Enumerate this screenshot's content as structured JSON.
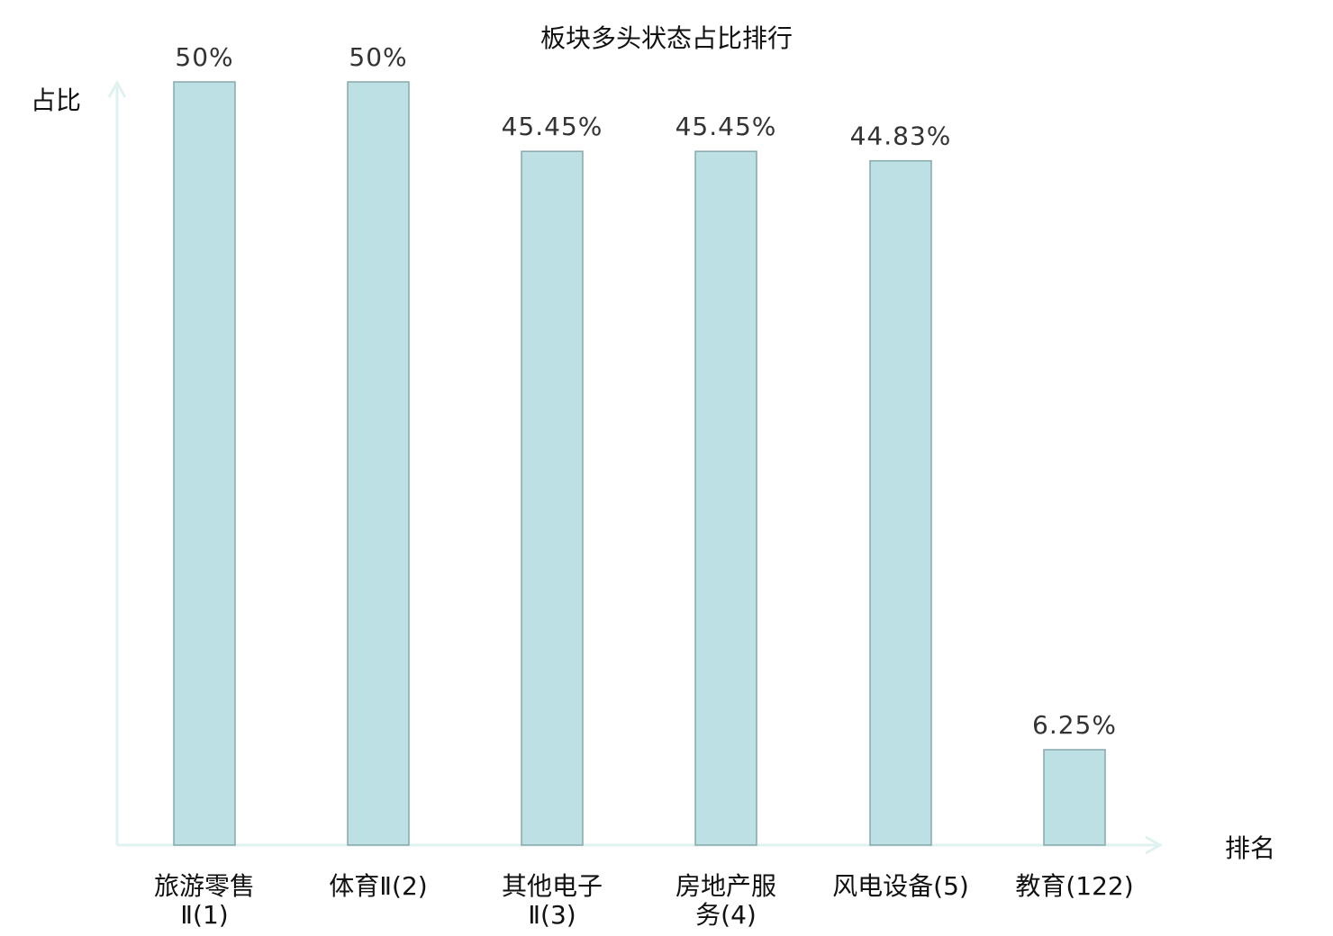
{
  "chart_data": {
    "type": "bar",
    "title": "板块多头状态占比排行",
    "xlabel": "排名",
    "ylabel": "占比",
    "categories": [
      [
        "旅游零售",
        "Ⅱ(1)"
      ],
      [
        "体育Ⅱ(2)"
      ],
      [
        "其他电子",
        "Ⅱ(3)"
      ],
      [
        "房地产服",
        "务(4)"
      ],
      [
        "风电设备(5)"
      ],
      [
        "教育(122)"
      ]
    ],
    "values": [
      50,
      50,
      45.45,
      45.45,
      44.83,
      6.25
    ],
    "data_labels": [
      "50%",
      "50%",
      "45.45%",
      "45.45%",
      "44.83%",
      "6.25%"
    ],
    "highlighted_category_index": 5,
    "ylim": [
      0,
      50
    ],
    "grid": false,
    "colors": {
      "bar_fill": "#bce0e3",
      "bar_stroke": "#88a8aa",
      "axis": "#dff2f0",
      "highlight_text": "#e8141a",
      "text": "#111111"
    }
  }
}
